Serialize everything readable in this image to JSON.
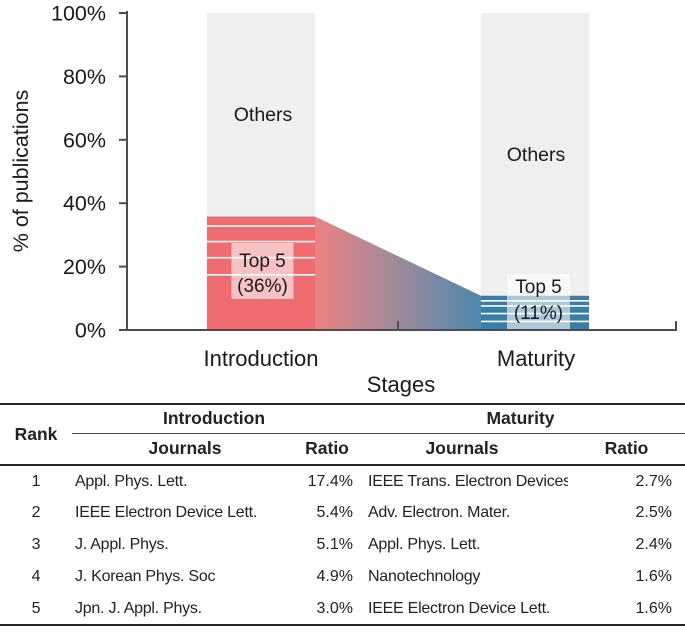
{
  "chart": {
    "ylabel": "% of publications",
    "xlabel": "Stages",
    "ytick_labels": [
      "0%",
      "20%",
      "40%",
      "60%",
      "80%",
      "100%"
    ],
    "others_label": "Others",
    "top5_labels": [
      [
        "Top 5",
        "(36%)"
      ],
      [
        "Top 5",
        "(11%)"
      ]
    ],
    "colors": {
      "intro_top5": "#ee6c6f",
      "maturity_top5": "#3a7ea8",
      "others": "#efefef",
      "flow_stops": [
        "#eb8283",
        "#9d8a9b",
        "#4d88ae"
      ],
      "axis": "#4d4d4d",
      "divider": "#ffffff",
      "text": "#1a1a1a"
    }
  },
  "chart_data": {
    "type": "bar",
    "stacked": true,
    "title": "",
    "xlabel": "Stages",
    "ylabel": "% of publications",
    "ylim": [
      0,
      100
    ],
    "grid": false,
    "categories": [
      "Introduction",
      "Maturity"
    ],
    "series": [
      {
        "name": "Top 5",
        "values": [
          35.8,
          10.8
        ]
      },
      {
        "name": "Others",
        "values": [
          64.2,
          89.2
        ]
      }
    ],
    "top5_breakdown": {
      "Introduction": [
        17.4,
        5.4,
        5.1,
        4.9,
        3.0
      ],
      "Maturity": [
        2.7,
        2.5,
        2.4,
        1.6,
        1.6
      ]
    },
    "annotations": [
      "Others",
      "Top 5 (36%)",
      "Others",
      "Top 5 (11%)"
    ]
  },
  "table": {
    "headers": {
      "rank": "Rank",
      "intro": "Introduction",
      "maturity": "Maturity",
      "journals": "Journals",
      "ratio": "Ratio"
    },
    "rows": [
      {
        "rank": "1",
        "intro_journal": "Appl. Phys. Lett.",
        "intro_ratio": "17.4%",
        "mat_journal": "IEEE Trans. Electron Devices",
        "mat_ratio": "2.7%"
      },
      {
        "rank": "2",
        "intro_journal": "IEEE Electron Device Lett.",
        "intro_ratio": "5.4%",
        "mat_journal": "Adv. Electron. Mater.",
        "mat_ratio": "2.5%"
      },
      {
        "rank": "3",
        "intro_journal": "J. Appl. Phys.",
        "intro_ratio": "5.1%",
        "mat_journal": "Appl. Phys. Lett.",
        "mat_ratio": "2.4%"
      },
      {
        "rank": "4",
        "intro_journal": "J. Korean Phys. Soc",
        "intro_ratio": "4.9%",
        "mat_journal": "Nanotechnology",
        "mat_ratio": "1.6%"
      },
      {
        "rank": "5",
        "intro_journal": "Jpn. J. Appl. Phys.",
        "intro_ratio": "3.0%",
        "mat_journal": "IEEE Electron Device Lett.",
        "mat_ratio": "1.6%"
      }
    ]
  }
}
